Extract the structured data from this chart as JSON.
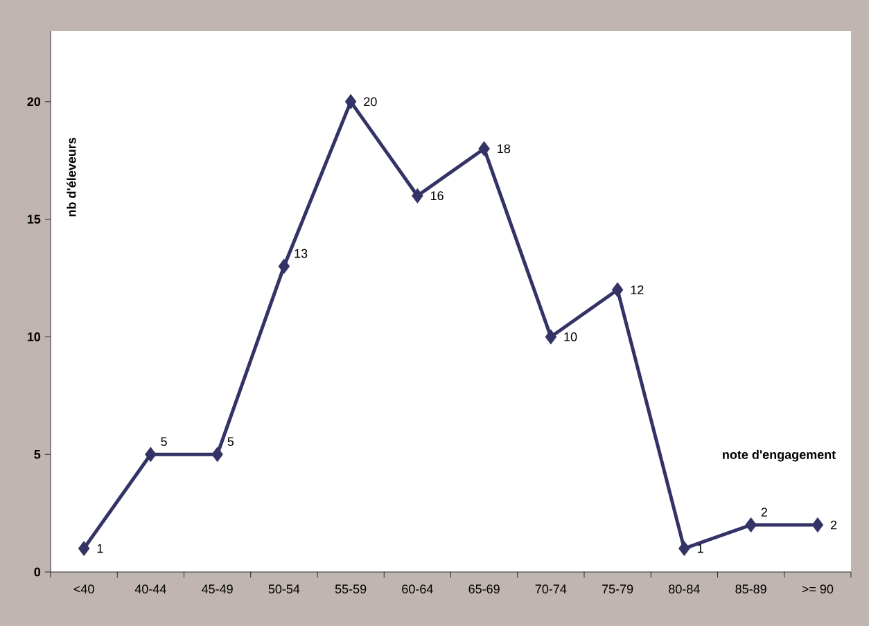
{
  "chart_data": {
    "type": "line",
    "categories": [
      "<40",
      "40-44",
      "45-49",
      "50-54",
      "55-59",
      "60-64",
      "65-69",
      "70-74",
      "75-79",
      "80-84",
      "85-89",
      ">= 90"
    ],
    "values": [
      1,
      5,
      5,
      13,
      20,
      16,
      18,
      10,
      12,
      1,
      2,
      2
    ],
    "color": "#333366",
    "xlabel": "note d'engagement",
    "ylabel": "nb d'éleveurs",
    "ylim": [
      0,
      23
    ],
    "yticks": [
      0,
      5,
      10,
      15,
      20
    ],
    "grid": false,
    "marker": "diamond",
    "line_style": "solid",
    "data_labels": true
  }
}
